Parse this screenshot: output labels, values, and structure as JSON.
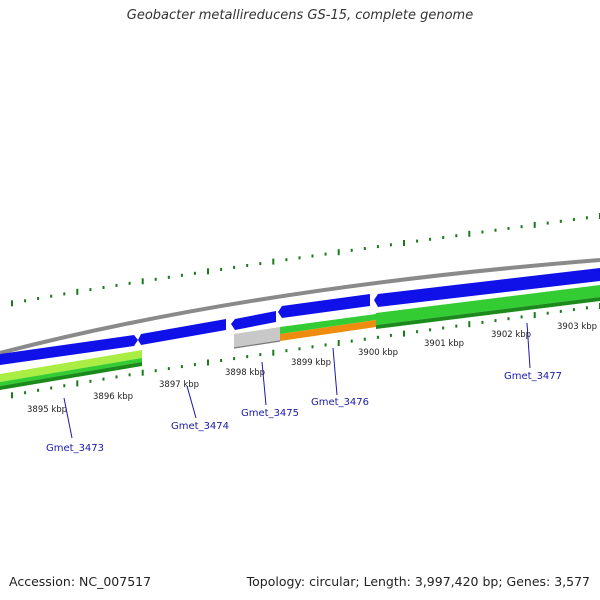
{
  "title": "Geobacter metallireducens GS-15, complete genome",
  "footer": {
    "accession": "Accession: NC_007517",
    "stats": "Topology: circular; Length: 3,997,420 bp; Genes: 3,577"
  },
  "colors": {
    "backbone": "#8a8a8a",
    "cds_forward": "#1010e8",
    "green_bright": "#33cc33",
    "green_dark": "#1a8a1a",
    "yellow_green": "#aaee44",
    "orange": "#ee8c10",
    "gray_feature": "#c8c8c8",
    "tick": "#1a7a1a",
    "label": "#1a1aa8"
  },
  "scale": {
    "labels": [
      "3895 kbp",
      "3896 kbp",
      "3897 kbp",
      "3898 kbp",
      "3899 kbp",
      "3900 kbp",
      "3901 kbp",
      "3902 kbp",
      "3903 kbp"
    ]
  },
  "genes": [
    {
      "label": "Gmet_3473"
    },
    {
      "label": "Gmet_3474"
    },
    {
      "label": "Gmet_3475"
    },
    {
      "label": "Gmet_3476"
    },
    {
      "label": "Gmet_3477"
    }
  ]
}
